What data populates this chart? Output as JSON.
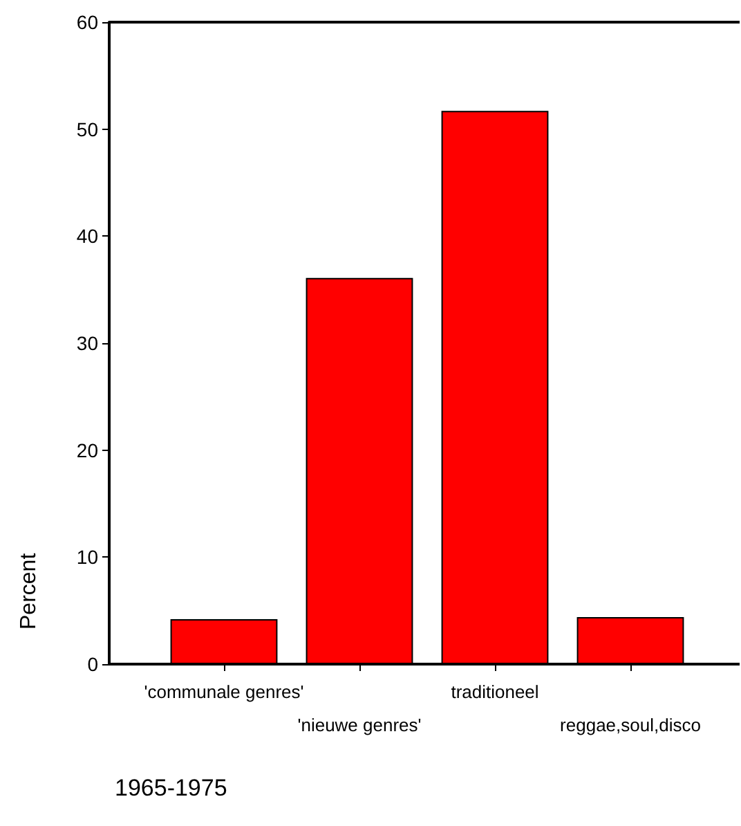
{
  "chart_data": {
    "type": "bar",
    "title": "1965-1975",
    "ylabel": "Percent",
    "categories": [
      "'communale genres'",
      "'nieuwe genres'",
      "traditioneel",
      "reggae,soul,disco"
    ],
    "values": [
      4.2,
      36.1,
      51.7,
      4.4
    ],
    "color": "#ff0000",
    "ylim": [
      0,
      60
    ],
    "yticks": [
      0,
      10,
      20,
      30,
      40,
      50,
      60
    ],
    "grid": false
  }
}
